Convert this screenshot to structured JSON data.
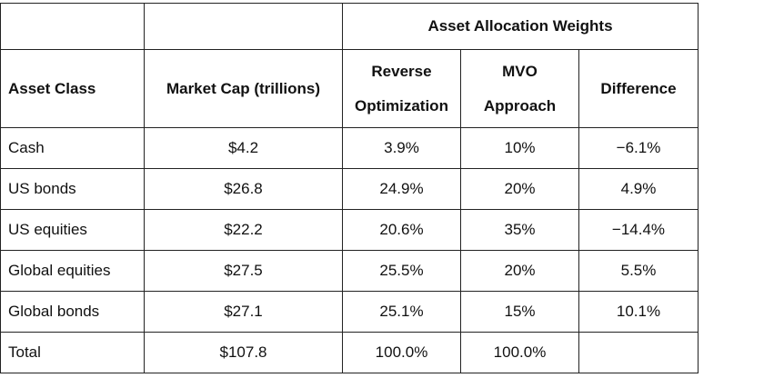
{
  "table": {
    "group_header": "Asset Allocation Weights",
    "columns": {
      "asset_class": "Asset Class",
      "market_cap": "Market Cap (trillions)",
      "reverse_line1": "Reverse",
      "reverse_line2": "Optimization",
      "mvo_line1": "MVO",
      "mvo_line2": "Approach",
      "difference": "Difference"
    },
    "rows": [
      {
        "asset": "Cash",
        "cap": "$4.2",
        "reverse": "3.9%",
        "mvo": "10%",
        "diff": "−6.1%"
      },
      {
        "asset": "US bonds",
        "cap": "$26.8",
        "reverse": "24.9%",
        "mvo": "20%",
        "diff": "4.9%"
      },
      {
        "asset": "US equities",
        "cap": "$22.2",
        "reverse": "20.6%",
        "mvo": "35%",
        "diff": "−14.4%"
      },
      {
        "asset": "Global equities",
        "cap": "$27.5",
        "reverse": "25.5%",
        "mvo": "20%",
        "diff": "5.5%"
      },
      {
        "asset": "Global bonds",
        "cap": "$27.1",
        "reverse": "25.1%",
        "mvo": "15%",
        "diff": "10.1%"
      },
      {
        "asset": "Total",
        "cap": "$107.8",
        "reverse": "100.0%",
        "mvo": "100.0%",
        "diff": ""
      }
    ]
  }
}
